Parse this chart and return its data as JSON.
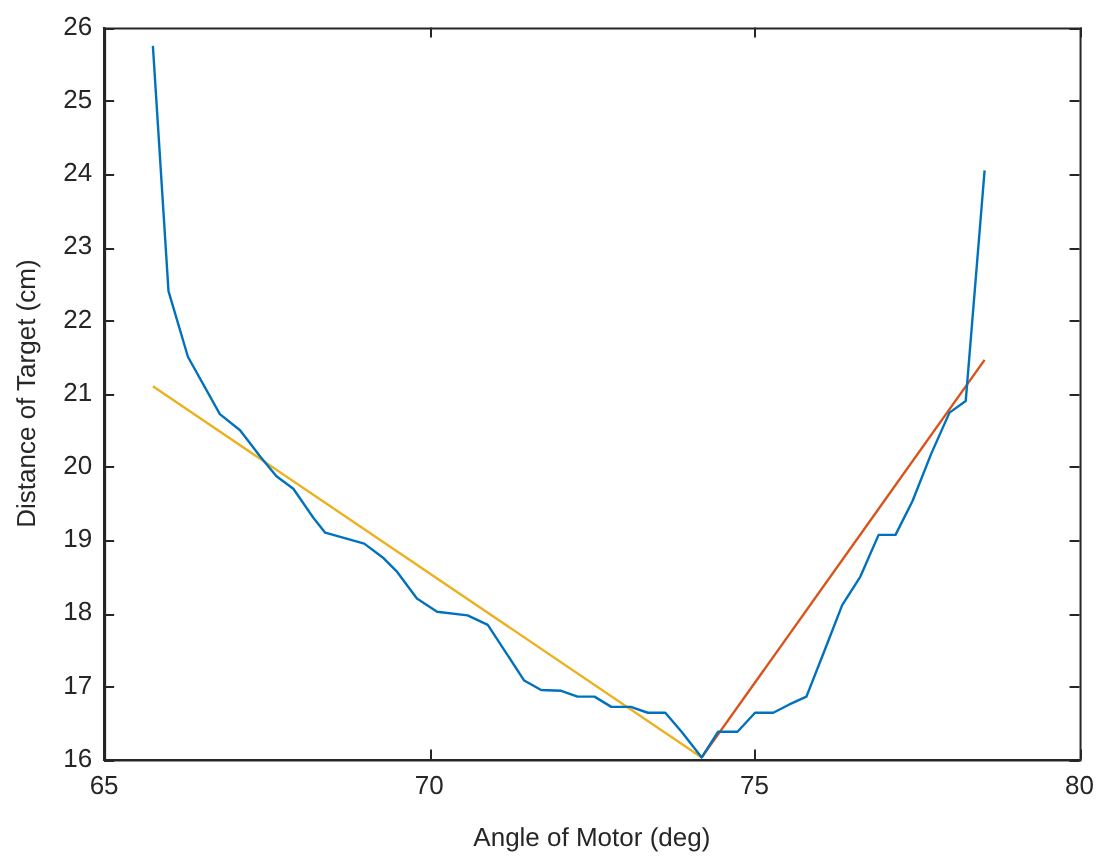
{
  "chart_data": {
    "type": "line",
    "xlabel": "Angle of Motor (deg)",
    "ylabel": "Distance of Target (cm)",
    "xlim": [
      65,
      80
    ],
    "xticks": [
      65,
      70,
      75,
      80
    ],
    "ylim": [
      16,
      26
    ],
    "yticks": [
      16,
      17,
      18,
      19,
      20,
      21,
      22,
      23,
      24,
      25,
      26
    ],
    "grid": false,
    "legend": false,
    "marker": "none",
    "line_style": "solid",
    "series": [
      {
        "color": "#0072bd",
        "x": [
          65.75,
          65.99,
          66.29,
          66.78,
          67.09,
          67.4,
          67.65,
          67.91,
          68.22,
          68.4,
          69.0,
          69.3,
          69.51,
          69.81,
          70.12,
          70.59,
          70.9,
          71.46,
          71.72,
          72.03,
          72.28,
          72.54,
          72.8,
          73.1,
          73.36,
          73.63,
          73.88,
          74.19,
          74.44,
          74.74,
          75.01,
          75.29,
          75.53,
          75.8,
          76.07,
          76.35,
          76.63,
          76.91,
          77.17,
          77.43,
          77.72,
          78.0,
          78.25,
          78.54
        ],
        "values": [
          25.75,
          22.4,
          21.5,
          20.72,
          20.5,
          20.14,
          19.87,
          19.7,
          19.3,
          19.1,
          18.95,
          18.75,
          18.56,
          18.2,
          18.02,
          17.97,
          17.84,
          17.08,
          16.95,
          16.94,
          16.86,
          16.86,
          16.72,
          16.72,
          16.64,
          16.64,
          16.38,
          16.03,
          16.38,
          16.38,
          16.64,
          16.64,
          16.75,
          16.86,
          17.47,
          18.11,
          18.5,
          19.07,
          19.07,
          19.53,
          20.18,
          20.74,
          20.9,
          24.05
        ]
      },
      {
        "type": "line",
        "color": "#edb120",
        "x": [
          65.75,
          74.19
        ],
        "values": [
          21.1,
          16.03
        ]
      },
      {
        "type": "line",
        "color": "#d95319",
        "x": [
          74.19,
          78.54
        ],
        "values": [
          16.03,
          21.46
        ]
      }
    ]
  }
}
